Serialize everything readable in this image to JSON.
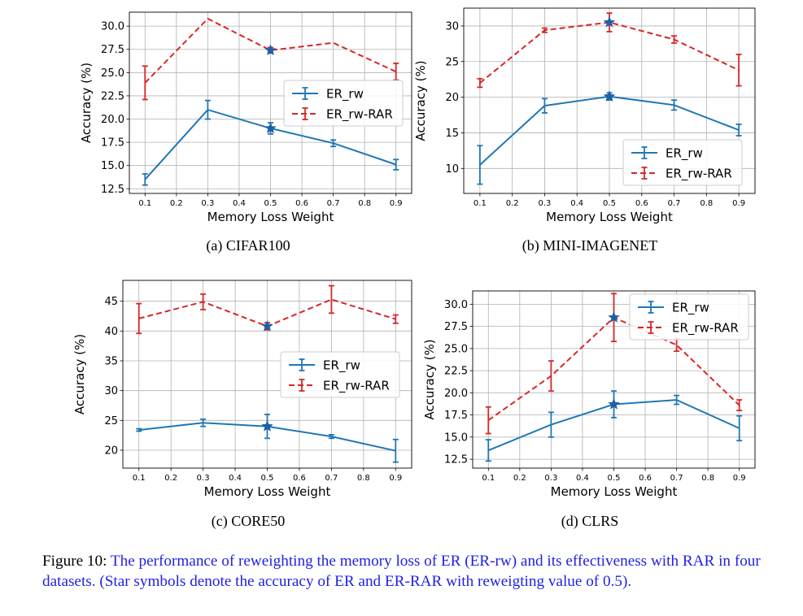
{
  "chart_data": [
    {
      "type": "line",
      "xlabel": "Memory Loss Weight",
      "ylabel": "Accuracy (%)",
      "caption": "(a) CIFAR100",
      "x": [
        0.1,
        0.3,
        0.5,
        0.7,
        0.9
      ],
      "xticks": [
        "0.1",
        "0.2",
        "0.3",
        "0.4",
        "0.5",
        "0.6",
        "0.7",
        "0.8",
        "0.9"
      ],
      "xlim": [
        0.05,
        0.95
      ],
      "ylim": [
        12.0,
        31.5
      ],
      "yticks": [
        "12.5",
        "15.0",
        "17.5",
        "20.0",
        "22.5",
        "25.0",
        "27.5",
        "30.0"
      ],
      "grid": true,
      "legend": "center-right",
      "star_x": 0.5,
      "series": [
        {
          "name": "ER_rw",
          "color": "#1f77b4",
          "style": "solid",
          "values": [
            13.5,
            21.0,
            19.0,
            17.4,
            15.1
          ],
          "errors": [
            0.6,
            1.0,
            0.6,
            0.35,
            0.55
          ]
        },
        {
          "name": "ER_rw-RAR",
          "color": "#d62728",
          "style": "dashed",
          "values": [
            23.9,
            30.8,
            27.4,
            28.2,
            25.1
          ],
          "errors": [
            1.8,
            0.0,
            0.3,
            0.0,
            0.9
          ]
        }
      ]
    },
    {
      "type": "line",
      "xlabel": "Memory Loss Weight",
      "ylabel": "Accuracy (%)",
      "caption": "(b) MINI-IMAGENET",
      "x": [
        0.1,
        0.3,
        0.5,
        0.7,
        0.9
      ],
      "xticks": [
        "0.1",
        "0.2",
        "0.3",
        "0.4",
        "0.5",
        "0.6",
        "0.7",
        "0.8",
        "0.9"
      ],
      "xlim": [
        0.05,
        0.95
      ],
      "ylim": [
        6.5,
        32.5
      ],
      "yticks": [
        "10",
        "15",
        "20",
        "25",
        "30"
      ],
      "grid": true,
      "legend": "bottom-right",
      "star_x": 0.5,
      "series": [
        {
          "name": "ER_rw",
          "color": "#1f77b4",
          "style": "solid",
          "values": [
            10.5,
            18.8,
            20.1,
            18.9,
            15.4
          ],
          "errors": [
            2.7,
            1.0,
            0.5,
            0.7,
            0.8
          ]
        },
        {
          "name": "ER_rw-RAR",
          "color": "#d62728",
          "style": "dashed",
          "values": [
            22.0,
            29.4,
            30.5,
            28.1,
            23.8
          ],
          "errors": [
            0.6,
            0.3,
            1.3,
            0.5,
            2.2
          ]
        }
      ]
    },
    {
      "type": "line",
      "xlabel": "Memory Loss Weight",
      "ylabel": "Accuracy (%)",
      "caption": "(c) CORE50",
      "x": [
        0.1,
        0.3,
        0.5,
        0.7,
        0.9
      ],
      "xticks": [
        "0.1",
        "0.2",
        "0.3",
        "0.4",
        "0.5",
        "0.6",
        "0.7",
        "0.8",
        "0.9"
      ],
      "xlim": [
        0.05,
        0.95
      ],
      "ylim": [
        17.0,
        48.5
      ],
      "yticks": [
        "20",
        "25",
        "30",
        "35",
        "40",
        "45"
      ],
      "grid": true,
      "legend": "center-right",
      "star_x": 0.5,
      "series": [
        {
          "name": "ER_rw",
          "color": "#1f77b4",
          "style": "solid",
          "values": [
            23.4,
            24.6,
            24.0,
            22.3,
            19.9
          ],
          "errors": [
            0.2,
            0.6,
            2.0,
            0.3,
            1.9
          ]
        },
        {
          "name": "ER_rw-RAR",
          "color": "#d62728",
          "style": "dashed",
          "values": [
            42.1,
            44.9,
            40.8,
            45.3,
            42.0
          ],
          "errors": [
            2.5,
            1.3,
            0.6,
            2.3,
            0.7
          ]
        }
      ]
    },
    {
      "type": "line",
      "xlabel": "Memory Loss Weight",
      "ylabel": "Accuracy (%)",
      "caption": "(d) CLRS",
      "x": [
        0.1,
        0.3,
        0.5,
        0.7,
        0.9
      ],
      "xticks": [
        "0.1",
        "0.2",
        "0.3",
        "0.4",
        "0.5",
        "0.6",
        "0.7",
        "0.8",
        "0.9"
      ],
      "xlim": [
        0.05,
        0.95
      ],
      "ylim": [
        11.5,
        31.5
      ],
      "yticks": [
        "12.5",
        "15.0",
        "17.5",
        "20.0",
        "22.5",
        "25.0",
        "27.5",
        "30.0"
      ],
      "grid": true,
      "legend": "top-right",
      "star_x": 0.5,
      "series": [
        {
          "name": "ER_rw",
          "color": "#1f77b4",
          "style": "solid",
          "values": [
            13.5,
            16.4,
            18.7,
            19.2,
            16.0
          ],
          "errors": [
            1.2,
            1.4,
            1.5,
            0.5,
            1.4
          ]
        },
        {
          "name": "ER_rw-RAR",
          "color": "#d62728",
          "style": "dashed",
          "values": [
            16.9,
            21.9,
            28.5,
            25.4,
            18.6
          ],
          "errors": [
            1.5,
            1.7,
            2.7,
            0.7,
            0.6
          ]
        }
      ]
    }
  ],
  "figure_caption": {
    "label": "Figure 10:",
    "text": "The performance of reweighting the memory loss of ER (ER-rw) and its effectiveness with RAR in four datasets. (Star symbols denote the accuracy of ER and ER-RAR with reweigting value of 0.5)."
  },
  "colors": {
    "er_rw": "#1f77b4",
    "er_rw_rar": "#d62728",
    "caption_text": "#1f1fe6"
  }
}
